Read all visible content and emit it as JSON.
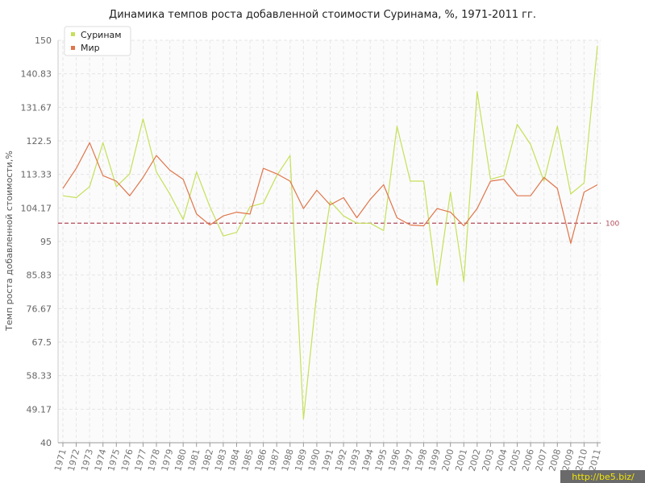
{
  "chart_data": {
    "type": "line",
    "title": "Динамика темпов роста добавленной стоимости Суринама, %, 1971-2011 гг.",
    "xlabel": "",
    "ylabel": "Темп роста добавленной стоимости,%",
    "ylim": [
      40,
      150
    ],
    "yticks": [
      "40",
      "49.17",
      "58.33",
      "67.5",
      "76.67",
      "85.83",
      "95",
      "104.17",
      "113.33",
      "122.5",
      "131.67",
      "140.83",
      "150"
    ],
    "yticks_values": [
      40,
      49.17,
      58.33,
      67.5,
      76.67,
      85.83,
      95,
      104.17,
      113.33,
      122.5,
      131.67,
      140.83,
      150
    ],
    "categories": [
      "1971",
      "1972",
      "1973",
      "1974",
      "1975",
      "1976",
      "1977",
      "1978",
      "1979",
      "1980",
      "1981",
      "1982",
      "1983",
      "1984",
      "1985",
      "1986",
      "1987",
      "1988",
      "1989",
      "1990",
      "1991",
      "1992",
      "1993",
      "1994",
      "1995",
      "1996",
      "1997",
      "1998",
      "1999",
      "2000",
      "2001",
      "2002",
      "2003",
      "2004",
      "2005",
      "2006",
      "2007",
      "2008",
      "2009",
      "2010",
      "2011"
    ],
    "grid": true,
    "legend_position": "top-left",
    "reference_line": {
      "value": 100,
      "label": "100",
      "color": "#b24a5a"
    },
    "series": [
      {
        "name": "Суринам",
        "color": "#c5e05a",
        "values": [
          107.5,
          107,
          110,
          122,
          110,
          113.5,
          128.5,
          114,
          108,
          101,
          114,
          104.5,
          96.5,
          97.5,
          104.5,
          105.5,
          113,
          118.5,
          46.5,
          81,
          106,
          102,
          100,
          100,
          98,
          126.5,
          111.5,
          111.5,
          83,
          108.5,
          84,
          136,
          112,
          113,
          127,
          121.5,
          111.5,
          126.5,
          108,
          111,
          148.5
        ]
      },
      {
        "name": "Мир",
        "color": "#e0754a",
        "values": [
          109.5,
          115,
          122,
          113,
          111.5,
          107.5,
          112.5,
          118.5,
          114.5,
          112,
          102.5,
          99.5,
          102,
          103,
          102.5,
          115,
          113.5,
          111.5,
          104,
          109,
          105,
          107,
          101.5,
          106.5,
          110.5,
          101.5,
          99.5,
          99.3,
          104,
          103,
          99.3,
          104,
          111.5,
          112,
          107.5,
          107.5,
          112.5,
          109.5,
          94.5,
          108.5,
          110.5
        ]
      }
    ]
  },
  "watermark": "http://be5.biz/",
  "colors": {
    "grid": "#e6e6e6",
    "axis": "#cccccc",
    "plot_bg": "#fbfbfb",
    "watermark_bg": "#6a6a6a"
  }
}
